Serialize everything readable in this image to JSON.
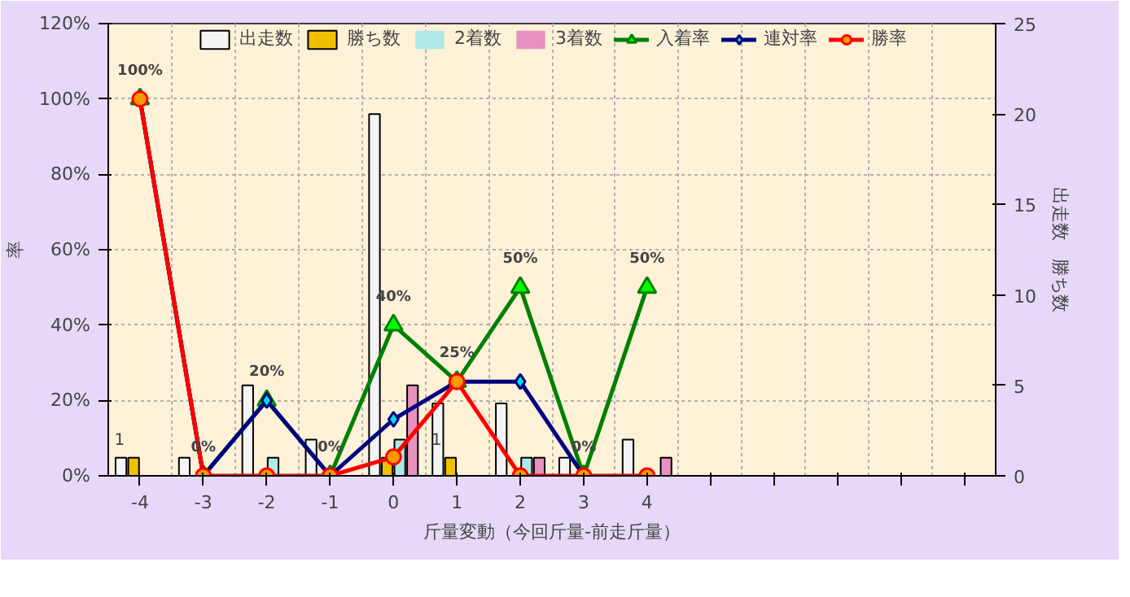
{
  "chart_data": {
    "type": "bar",
    "xlabel": "斤量変動（今回斤量-前走斤量）",
    "ylabel": "率",
    "y2label": "出走数　勝ち数",
    "categories": [
      "-4",
      "-3",
      "-2",
      "-1",
      "0",
      "1",
      "2",
      "3",
      "4",
      null,
      null,
      null,
      null,
      null
    ],
    "series": [
      {
        "name": "出走数",
        "axis": "y2",
        "color": "#f4f4f4",
        "values": [
          1,
          1,
          5,
          2,
          20,
          4,
          4,
          1,
          2,
          null,
          null,
          null,
          null,
          null
        ]
      },
      {
        "name": "勝ち数",
        "axis": "y2",
        "color": "#f0c000",
        "values": [
          1,
          0,
          0,
          0,
          1,
          1,
          0,
          0,
          0,
          null,
          null,
          null,
          null,
          null
        ]
      },
      {
        "name": "2着数",
        "axis": "y2",
        "color": "#b0e8e8",
        "values": [
          0,
          0,
          1,
          0,
          2,
          0,
          1,
          0,
          0,
          null,
          null,
          null,
          null,
          null
        ]
      },
      {
        "name": "3着数",
        "axis": "y2",
        "color": "#e890c0",
        "values": [
          0,
          0,
          0,
          0,
          5,
          0,
          1,
          0,
          1,
          null,
          null,
          null,
          null,
          null
        ]
      },
      {
        "name": "入着率",
        "type": "line",
        "marker": "triangle",
        "color": "#008000",
        "values": [
          100,
          0,
          20,
          0,
          40,
          25,
          50,
          0,
          50,
          null,
          null,
          null,
          null,
          null
        ],
        "value_labels": [
          "100%",
          "0%",
          "20%",
          "0%",
          "40%",
          "25%",
          "50%",
          "0%",
          "50%",
          null,
          null,
          null,
          null,
          null
        ]
      },
      {
        "name": "連対率",
        "type": "line",
        "marker": "diamond",
        "color": "#000080",
        "values": [
          100,
          0,
          20,
          0,
          15,
          25,
          25,
          0,
          null,
          null,
          null,
          null,
          null,
          null
        ]
      },
      {
        "name": "勝率",
        "type": "line",
        "marker": "circle",
        "color": "#ff0000",
        "values": [
          100,
          0,
          0,
          0,
          5,
          25,
          0,
          0,
          0,
          null,
          null,
          null,
          null,
          null
        ]
      }
    ],
    "annotations": [
      {
        "text": "1",
        "x": "-4",
        "y": 1
      },
      {
        "text": "1",
        "x": "1",
        "y": 1
      }
    ],
    "ylim": [
      0,
      120
    ],
    "yticks": [
      {
        "value": 0,
        "label": "0%"
      },
      {
        "value": 20,
        "label": "20%"
      },
      {
        "value": 40,
        "label": "40%"
      },
      {
        "value": 60,
        "label": "60%"
      },
      {
        "value": 80,
        "label": "80%"
      },
      {
        "value": 100,
        "label": "100%"
      },
      {
        "value": 120,
        "label": "120%"
      }
    ],
    "y2lim": [
      0,
      25
    ],
    "y2ticks": [
      0,
      5,
      10,
      15,
      20,
      25
    ],
    "grid": true,
    "legend": "top"
  }
}
